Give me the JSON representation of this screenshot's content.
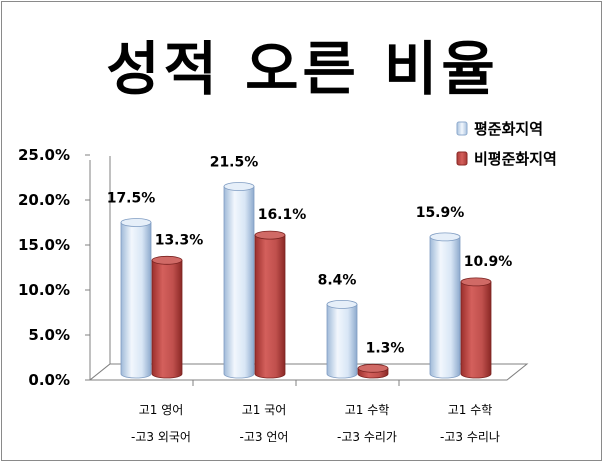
{
  "chart_data": {
    "type": "bar",
    "title": "성적 오른 비율",
    "categories": [
      [
        "고1 영어",
        "-고3 외국어"
      ],
      [
        "고1 국어",
        "-고3 언어"
      ],
      [
        "고1 수학",
        "-고3 수리가"
      ],
      [
        "고1 수학",
        "-고3 수리나"
      ]
    ],
    "series": [
      {
        "name": "평준화지역",
        "color": "#cfe0f3",
        "values": [
          17.5,
          21.5,
          8.4,
          15.9
        ],
        "labels": [
          "17.5%",
          "21.5%",
          "8.4%",
          "15.9%"
        ]
      },
      {
        "name": "비평준화지역",
        "color": "#c0504d",
        "values": [
          13.3,
          16.1,
          1.3,
          10.9
        ],
        "labels": [
          "13.3%",
          "16.1%",
          "1.3%",
          "10.9%"
        ]
      }
    ],
    "yticks": [
      "0.0%",
      "5.0%",
      "10.0%",
      "15.0%",
      "20.0%",
      "25.0%"
    ],
    "ylim": [
      0,
      25
    ],
    "legend": "top-right",
    "grid": false
  }
}
